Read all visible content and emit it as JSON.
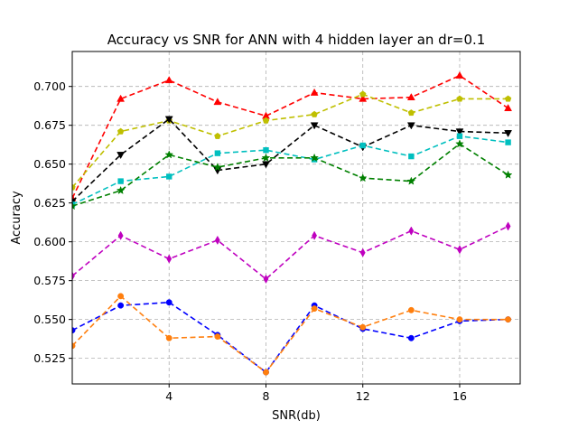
{
  "chart_data": {
    "type": "line",
    "title": "Accuracy vs SNR for ANN with 4 hidden layer an dr=0.1",
    "xlabel": "SNR(db)",
    "ylabel": "Accuracy",
    "xlim": [
      0,
      18.5
    ],
    "ylim": [
      0.5085,
      0.7225
    ],
    "xticks": [
      4,
      8,
      12,
      16
    ],
    "yticks": [
      0.525,
      0.55,
      0.575,
      0.6,
      0.625,
      0.65,
      0.675,
      0.7
    ],
    "ytick_labels": [
      "0.525",
      "0.550",
      "0.575",
      "0.600",
      "0.625",
      "0.650",
      "0.675",
      "0.700"
    ],
    "grid": true,
    "x": [
      0,
      2,
      4,
      6,
      8,
      10,
      12,
      14,
      16,
      18
    ],
    "series": [
      {
        "color": "#ff0000",
        "marker": "triangle-up",
        "values": [
          0.628,
          0.692,
          0.704,
          0.69,
          0.681,
          0.696,
          0.692,
          0.693,
          0.707,
          0.686
        ]
      },
      {
        "color": "#bfbf00",
        "marker": "pentagon",
        "values": [
          0.635,
          0.671,
          0.678,
          0.668,
          0.678,
          0.682,
          0.695,
          0.683,
          0.692,
          0.692
        ]
      },
      {
        "color": "#000000",
        "marker": "triangle-down",
        "values": [
          0.626,
          0.656,
          0.679,
          0.646,
          0.65,
          0.675,
          0.661,
          0.675,
          0.671,
          0.67
        ]
      },
      {
        "color": "#00bfbf",
        "marker": "square",
        "values": [
          0.624,
          0.639,
          0.642,
          0.657,
          0.659,
          0.653,
          0.662,
          0.655,
          0.668,
          0.664
        ]
      },
      {
        "color": "#008000",
        "marker": "star",
        "values": [
          0.623,
          0.633,
          0.656,
          0.648,
          0.654,
          0.654,
          0.641,
          0.639,
          0.663,
          0.643
        ]
      },
      {
        "color": "#bf00bf",
        "marker": "thin-diamond",
        "values": [
          0.578,
          0.604,
          0.589,
          0.601,
          0.576,
          0.604,
          0.593,
          0.607,
          0.595,
          0.61
        ]
      },
      {
        "color": "#0000ff",
        "marker": "circle",
        "values": [
          0.543,
          0.559,
          0.561,
          0.54,
          0.516,
          0.559,
          0.544,
          0.538,
          0.549,
          0.55
        ]
      },
      {
        "color": "#ff7f0e",
        "marker": "circle",
        "values": [
          0.533,
          0.565,
          0.538,
          0.539,
          0.516,
          0.557,
          0.545,
          0.556,
          0.55,
          0.55
        ]
      }
    ]
  }
}
